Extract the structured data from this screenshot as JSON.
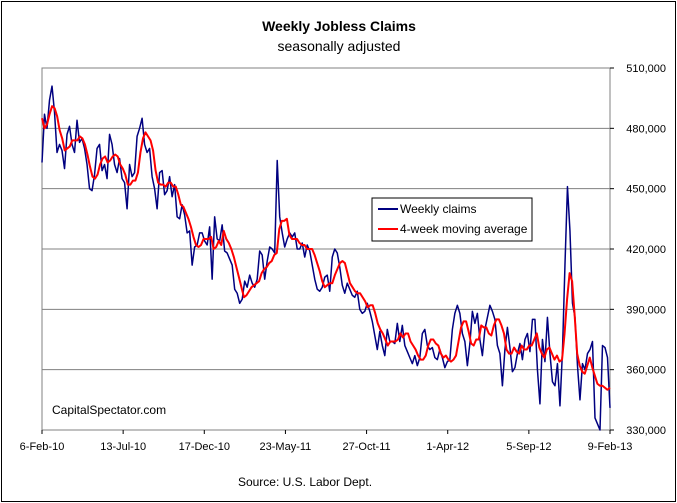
{
  "chart_data": {
    "type": "line",
    "title": "Weekly Jobless Claims",
    "subtitle": "seasonally adjusted",
    "source": "Source: U.S. Labor Dept.",
    "watermark": "CapitalSpectator.com",
    "y_axis_position": "right",
    "ylim": [
      330000,
      510000
    ],
    "y_ticks": [
      {
        "value": 330000,
        "label": "330,000"
      },
      {
        "value": 360000,
        "label": "360,000"
      },
      {
        "value": 390000,
        "label": "390,000"
      },
      {
        "value": 420000,
        "label": "420,000"
      },
      {
        "value": 450000,
        "label": "450,000"
      },
      {
        "value": 480000,
        "label": "480,000"
      },
      {
        "value": 510000,
        "label": "510,000"
      }
    ],
    "x_tick_labels": [
      "6-Feb-10",
      "13-Jul-10",
      "17-Dec-10",
      "23-May-11",
      "27-Oct-11",
      "1-Apr-12",
      "5-Sep-12",
      "9-Feb-13"
    ],
    "grid": "horizontal",
    "legend_position": "center-right",
    "series": [
      {
        "name": "Weekly claims",
        "color": "#000080",
        "values": [
          463000,
          487000,
          480000,
          494000,
          501000,
          488000,
          468000,
          472000,
          469000,
          460000,
          477000,
          481000,
          472000,
          468000,
          484000,
          473000,
          475000,
          470000,
          462000,
          450000,
          449000,
          457000,
          470000,
          472000,
          459000,
          462000,
          455000,
          477000,
          472000,
          462000,
          458000,
          465000,
          455000,
          453000,
          440000,
          462000,
          456000,
          458000,
          476000,
          480000,
          485000,
          472000,
          468000,
          470000,
          456000,
          450000,
          440000,
          458000,
          459000,
          447000,
          449000,
          456000,
          446000,
          452000,
          436000,
          435000,
          442000,
          437000,
          428000,
          429000,
          412000,
          421000,
          422000,
          428000,
          428000,
          424000,
          422000,
          431000,
          405000,
          436000,
          425000,
          424000,
          432000,
          419000,
          418000,
          415000,
          412000,
          400000,
          398000,
          393000,
          395000,
          404000,
          401000,
          407000,
          403000,
          401000,
          405000,
          419000,
          417000,
          405000,
          414000,
          421000,
          420000,
          418000,
          464000,
          436000,
          428000,
          421000,
          425000,
          428000,
          426000,
          428000,
          420000,
          420000,
          423000,
          416000,
          422000,
          419000,
          412000,
          405000,
          400000,
          399000,
          401000,
          406000,
          407000,
          399000,
          416000,
          420000,
          418000,
          411000,
          402000,
          398000,
          403000,
          400000,
          397000,
          396000,
          399000,
          390000,
          388000,
          389000,
          393000,
          389000,
          384000,
          377000,
          370000,
          379000,
          372000,
          367000,
          380000,
          374000,
          374000,
          373000,
          383000,
          374000,
          382000,
          372000,
          369000,
          366000,
          363000,
          367000,
          362000,
          366000,
          378000,
          380000,
          372000,
          370000,
          371000,
          366000,
          365000,
          370000,
          366000,
          361000,
          364000,
          365000,
          380000,
          388000,
          392000,
          388000,
          378000,
          374000,
          362000,
          373000,
          389000,
          383000,
          388000,
          375000,
          367000,
          380000,
          386000,
          392000,
          389000,
          385000,
          372000,
          368000,
          352000,
          370000,
          381000,
          371000,
          359000,
          361000,
          368000,
          373000,
          365000,
          375000,
          378000,
          369000,
          385000,
          385000,
          360000,
          343000,
          375000,
          364000,
          386000,
          368000,
          354000,
          352000,
          363000,
          342000,
          369000,
          412000,
          451000,
          429000,
          393000,
          386000,
          362000,
          345000,
          363000,
          360000,
          368000,
          370000,
          374000,
          336000,
          333000,
          330000,
          372000,
          371000,
          366000,
          341000
        ]
      },
      {
        "name": "4-week moving average",
        "color": "#ff0000",
        "values": [
          485000,
          480000,
          482000,
          487000,
          491000,
          490000,
          486000,
          479000,
          475000,
          469000,
          470000,
          471000,
          474000,
          474000,
          474000,
          476000,
          475000,
          472000,
          467000,
          461000,
          456000,
          455000,
          457000,
          462000,
          465000,
          466000,
          463000,
          464000,
          466000,
          467000,
          466000,
          462000,
          460000,
          457000,
          452000,
          452000,
          454000,
          454000,
          458000,
          468000,
          475000,
          478000,
          476000,
          474000,
          469000,
          459000,
          453000,
          452000,
          452000,
          451000,
          453000,
          453000,
          451000,
          451000,
          447000,
          442000,
          441000,
          438000,
          435000,
          431000,
          426000,
          422000,
          421000,
          422000,
          425000,
          425000,
          425000,
          426000,
          420000,
          421000,
          424000,
          422000,
          429000,
          425000,
          423000,
          420000,
          416000,
          411000,
          406000,
          401000,
          396000,
          397000,
          399000,
          401000,
          402000,
          403000,
          404000,
          408000,
          410000,
          411000,
          413000,
          414000,
          417000,
          418000,
          430000,
          434000,
          434000,
          435000,
          427000,
          425000,
          425000,
          425000,
          423000,
          422000,
          422000,
          420000,
          420000,
          420000,
          417000,
          413000,
          409000,
          404000,
          401000,
          402000,
          403000,
          403000,
          407000,
          410000,
          413000,
          414000,
          413000,
          408000,
          403000,
          401000,
          399000,
          398000,
          398000,
          396000,
          394000,
          391000,
          392000,
          392000,
          388000,
          383000,
          380000,
          378000,
          375000,
          372000,
          374000,
          374000,
          374000,
          375000,
          378000,
          376000,
          378000,
          378000,
          374000,
          372000,
          370000,
          367000,
          365000,
          365000,
          367000,
          372000,
          375000,
          375000,
          373000,
          372000,
          368000,
          366000,
          367000,
          365000,
          364000,
          365000,
          367000,
          374000,
          381000,
          384000,
          384000,
          379000,
          373000,
          372000,
          375000,
          375000,
          382000,
          381000,
          381000,
          378000,
          377000,
          382000,
          385000,
          385000,
          382000,
          378000,
          370000,
          368000,
          368000,
          371000,
          369000,
          368000,
          372000,
          370000,
          370000,
          372000,
          372000,
          375000,
          378000,
          371000,
          368000,
          366000,
          370000,
          371000,
          368000,
          365000,
          367000,
          364000,
          365000,
          378000,
          395000,
          408000,
          404000,
          387000,
          368000,
          362000,
          359000,
          358000,
          362000,
          366000,
          361000,
          357000,
          353000,
          352000,
          352000,
          351000,
          350000,
          351000
        ]
      }
    ]
  }
}
